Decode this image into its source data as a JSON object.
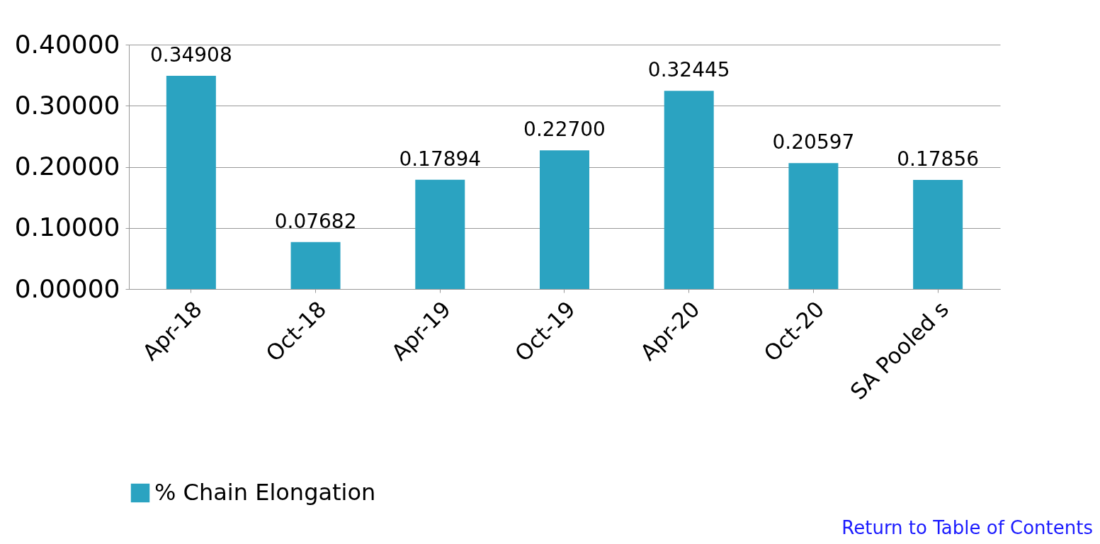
{
  "chart_data": {
    "type": "bar",
    "categories": [
      "Apr-18",
      "Oct-18",
      "Apr-19",
      "Oct-19",
      "Apr-20",
      "Oct-20",
      "SA Pooled s"
    ],
    "series": [
      {
        "name": "% Chain Elongation",
        "color": "#2ba3c1",
        "values": [
          0.34908,
          0.07682,
          0.17894,
          0.227,
          0.32445,
          0.20597,
          0.17856
        ],
        "value_labels": [
          "0.34908",
          "0.07682",
          "0.17894",
          "0.22700",
          "0.32445",
          "0.20597",
          "0.17856"
        ]
      }
    ],
    "ylim": [
      0,
      0.4
    ],
    "yticks": [
      {
        "value": 0,
        "label": "0.00000"
      },
      {
        "value": 0.1,
        "label": "0.10000"
      },
      {
        "value": 0.2,
        "label": "0.20000"
      },
      {
        "value": 0.3,
        "label": "0.30000"
      },
      {
        "value": 0.4,
        "label": "0.40000"
      }
    ],
    "grid": "y",
    "legend": "bottom",
    "annotations": [
      "Return to Table of Contents"
    ]
  }
}
